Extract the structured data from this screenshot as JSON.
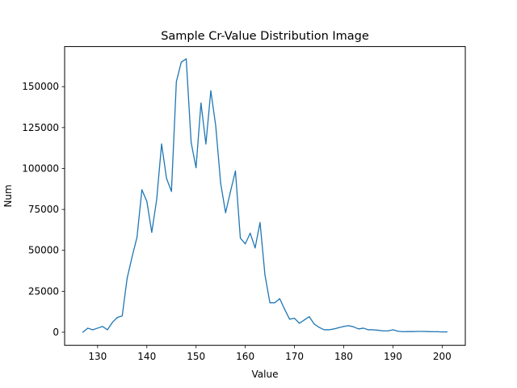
{
  "chart_data": {
    "type": "line",
    "title": "Sample Cr-Value Distribution Image",
    "xlabel": "Value",
    "ylabel": "Num",
    "xlim": [
      123.3,
      204.7
    ],
    "ylim": [
      -8000,
      174500
    ],
    "xticks": [
      130,
      140,
      150,
      160,
      170,
      180,
      190,
      200
    ],
    "yticks": [
      0,
      25000,
      50000,
      75000,
      100000,
      125000,
      150000
    ],
    "ytick_labels": [
      "0",
      "25000",
      "50000",
      "75000",
      "100000",
      "125000",
      "150000"
    ],
    "grid": false,
    "line_color": "#1f77b4",
    "series": [
      {
        "x": [
          127,
          128,
          129,
          130,
          131,
          132,
          133,
          134,
          135,
          136,
          137,
          138,
          139,
          140,
          141,
          142,
          143,
          144,
          145,
          146,
          147,
          148,
          149,
          150,
          151,
          152,
          153,
          154,
          155,
          156,
          157,
          158,
          159,
          160,
          161,
          162,
          163,
          164,
          165,
          166,
          167,
          168,
          169,
          170,
          171,
          172,
          173,
          174,
          175,
          176,
          177,
          178,
          179,
          180,
          181,
          182,
          183,
          184,
          185,
          186,
          187,
          188,
          189,
          190,
          191,
          192,
          193,
          194,
          195,
          196,
          197,
          198,
          199,
          200,
          201
        ],
        "values": [
          0,
          2500,
          1500,
          2500,
          3500,
          1500,
          6000,
          9000,
          10000,
          33000,
          46000,
          58000,
          87000,
          80000,
          61000,
          81000,
          115000,
          94000,
          86000,
          153000,
          165000,
          167000,
          116000,
          100500,
          140000,
          115000,
          147500,
          126000,
          91000,
          73000,
          86000,
          98500,
          57500,
          54000,
          60500,
          51500,
          67000,
          35000,
          18000,
          18000,
          20500,
          14000,
          8000,
          8500,
          5500,
          7500,
          9500,
          5000,
          3000,
          1500,
          1500,
          2000,
          2800,
          3500,
          4000,
          3300,
          2000,
          2500,
          1500,
          1500,
          1200,
          800,
          800,
          1500,
          600,
          300,
          400,
          400,
          500,
          500,
          400,
          300,
          300,
          200,
          200
        ]
      }
    ]
  }
}
